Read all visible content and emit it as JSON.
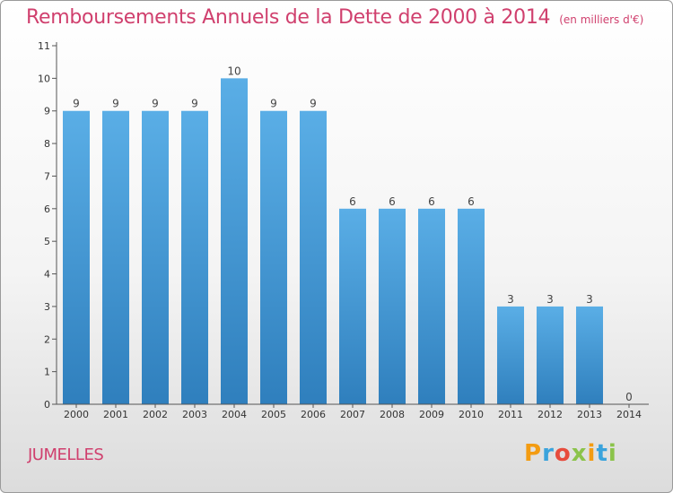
{
  "chart_data": {
    "type": "bar",
    "title": "Remboursements Annuels de la Dette de 2000 à 2014",
    "subtitle": "(en milliers d'€)",
    "categories": [
      "2000",
      "2001",
      "2002",
      "2003",
      "2004",
      "2005",
      "2006",
      "2007",
      "2008",
      "2009",
      "2010",
      "2011",
      "2012",
      "2013",
      "2014"
    ],
    "values": [
      9,
      9,
      9,
      9,
      10,
      9,
      9,
      6,
      6,
      6,
      6,
      3,
      3,
      3,
      0
    ],
    "data_labels": [
      "9",
      "9",
      "9",
      "9",
      "10",
      "9",
      "9",
      "6",
      "6",
      "6",
      "6",
      "3",
      "3",
      "3",
      "0"
    ],
    "ylim": [
      0,
      11
    ],
    "yticks": [
      0,
      1,
      2,
      3,
      4,
      5,
      6,
      7,
      8,
      9,
      10,
      11
    ],
    "grid": false,
    "bar_color": "#4b9fdc"
  },
  "footer": {
    "commune": "JUMELLES",
    "logo_letters": [
      "P",
      "r",
      "o",
      "x",
      "i",
      "t",
      "i"
    ],
    "logo_colors": [
      "#f39c12",
      "#3aa3dc",
      "#e74c3c",
      "#8bc34a",
      "#f39c12",
      "#3aa3dc",
      "#8bc34a"
    ]
  }
}
